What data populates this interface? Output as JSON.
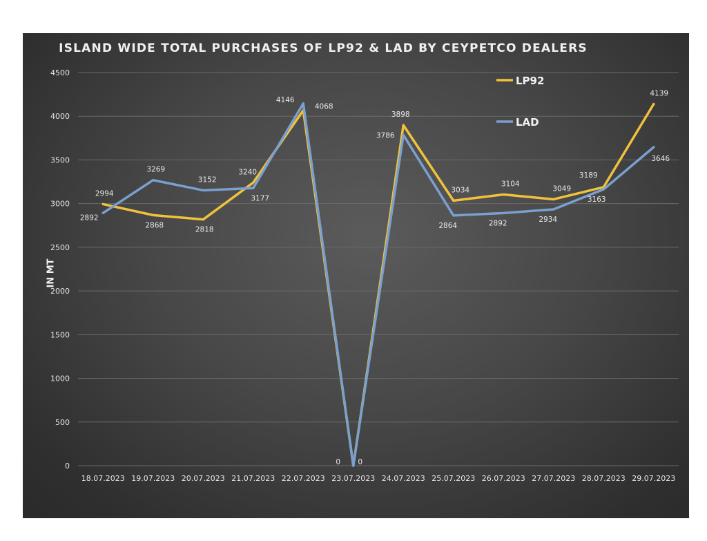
{
  "chart_data": {
    "type": "line",
    "title": "ISLAND WIDE TOTAL PURCHASES OF LP92 & LAD BY CEYPETCO DEALERS",
    "ylabel": "IN MT",
    "xlabel": "",
    "ylim": [
      0,
      4500
    ],
    "yticks": [
      "0",
      "500",
      "1000",
      "1500",
      "2000",
      "2500",
      "3000",
      "3500",
      "4000",
      "4500"
    ],
    "grid": true,
    "legend_position": "top-right",
    "categories": [
      "18.07.2023",
      "19.07.2023",
      "20.07.2023",
      "21.07.2023",
      "22.07.2023",
      "23.07.2023",
      "24.07.2023",
      "25.07.2023",
      "26.07.2023",
      "27.07.2023",
      "28.07.2023",
      "29.07.2023"
    ],
    "series": [
      {
        "name": "LP92",
        "color": "#f0c23c",
        "values": [
          2994,
          2868,
          2818,
          3240,
          4068,
          0,
          3898,
          3034,
          3104,
          3049,
          3189,
          4139
        ]
      },
      {
        "name": "LAD",
        "color": "#7aa0cf",
        "values": [
          2892,
          3269,
          3152,
          3177,
          4146,
          0,
          3786,
          2864,
          2892,
          2934,
          3163,
          3646
        ]
      }
    ]
  }
}
